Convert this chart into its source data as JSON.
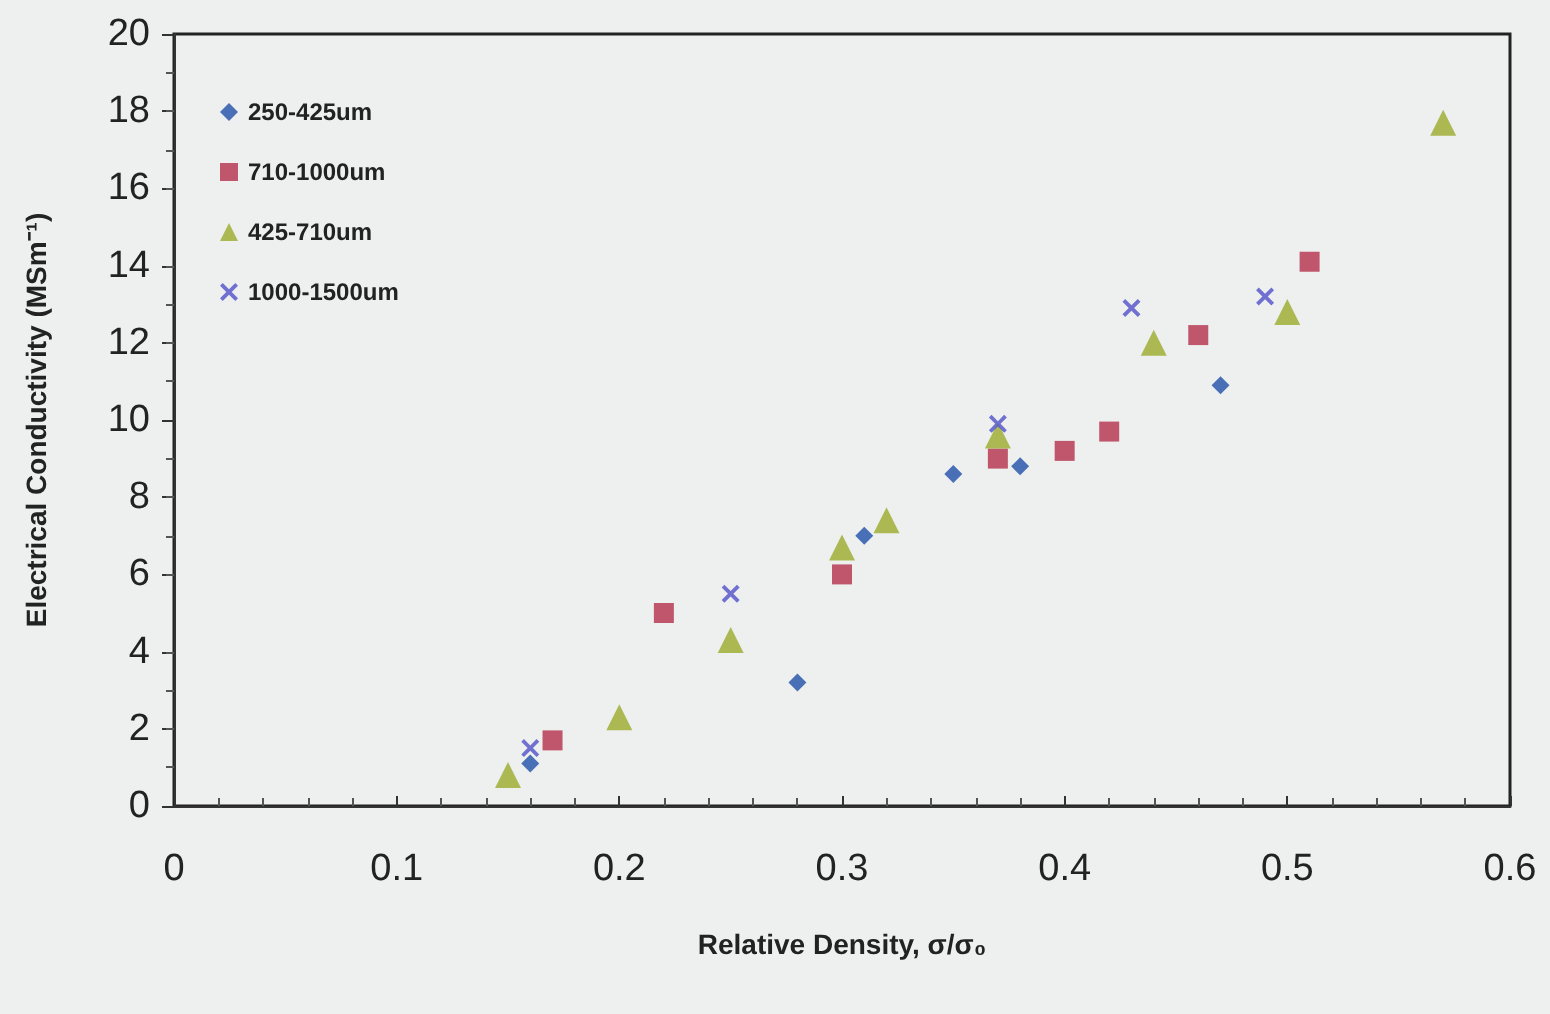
{
  "chart_data": {
    "type": "scatter",
    "xlabel": "Relative Density, σ/σ₀",
    "ylabel": "Electrical Conductivity (MSm⁻¹)",
    "xlim": [
      0,
      0.6
    ],
    "xticks": [
      0,
      0.1,
      0.2,
      0.3,
      0.4,
      0.5,
      0.6
    ],
    "ylim": [
      0,
      20
    ],
    "yticks": [
      0,
      2,
      4,
      6,
      8,
      10,
      12,
      14,
      16,
      18,
      20
    ],
    "grid": false,
    "legend": "top left",
    "series": [
      {
        "name": "250-425um",
        "color": "#1f4fa8",
        "marker": "diamond",
        "x": [
          0.16,
          0.28,
          0.31,
          0.35,
          0.38,
          0.47
        ],
        "values": [
          1.1,
          3.2,
          7.0,
          8.6,
          8.8,
          10.9
        ]
      },
      {
        "name": "710-1000um",
        "color": "#b3304a",
        "marker": "square",
        "x": [
          0.17,
          0.22,
          0.3,
          0.37,
          0.4,
          0.42,
          0.46,
          0.51
        ],
        "values": [
          1.7,
          5.0,
          6.0,
          9.0,
          9.2,
          9.7,
          12.2,
          14.1
        ]
      },
      {
        "name": "425-710um",
        "color": "#9bab2c",
        "marker": "triangle",
        "x": [
          0.15,
          0.2,
          0.25,
          0.3,
          0.32,
          0.37,
          0.44,
          0.5,
          0.57
        ],
        "values": [
          0.8,
          2.3,
          4.3,
          6.7,
          7.4,
          9.6,
          12.0,
          12.8,
          17.7
        ]
      },
      {
        "name": "1000-1500um",
        "color": "#5050c8",
        "marker": "cross",
        "x": [
          0.16,
          0.25,
          0.37,
          0.43,
          0.49
        ],
        "values": [
          1.5,
          5.5,
          9.9,
          12.9,
          13.2
        ]
      }
    ]
  }
}
